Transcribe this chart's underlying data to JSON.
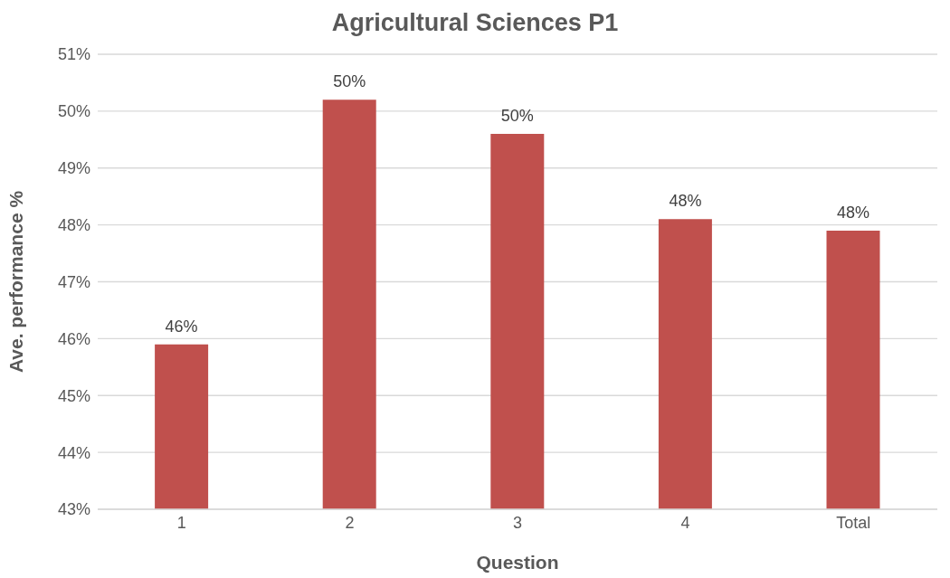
{
  "chart_data": {
    "type": "bar",
    "title": "Agricultural Sciences P1",
    "xlabel": "Question",
    "ylabel": "Ave. performance %",
    "categories": [
      "1",
      "2",
      "3",
      "4",
      "Total"
    ],
    "values": [
      45.9,
      50.2,
      49.6,
      48.1,
      47.9
    ],
    "value_labels": [
      "46%",
      "50%",
      "50%",
      "48%",
      "48%"
    ],
    "color": "#c0504d",
    "ylim": [
      43,
      51
    ],
    "yticks": [
      {
        "value": 43,
        "label": "43%"
      },
      {
        "value": 44,
        "label": "44%"
      },
      {
        "value": 45,
        "label": "45%"
      },
      {
        "value": 46,
        "label": "46%"
      },
      {
        "value": 47,
        "label": "47%"
      },
      {
        "value": 48,
        "label": "48%"
      },
      {
        "value": 49,
        "label": "49%"
      },
      {
        "value": 50,
        "label": "50%"
      },
      {
        "value": 51,
        "label": "51%"
      }
    ],
    "grid": "y",
    "legend": false
  }
}
